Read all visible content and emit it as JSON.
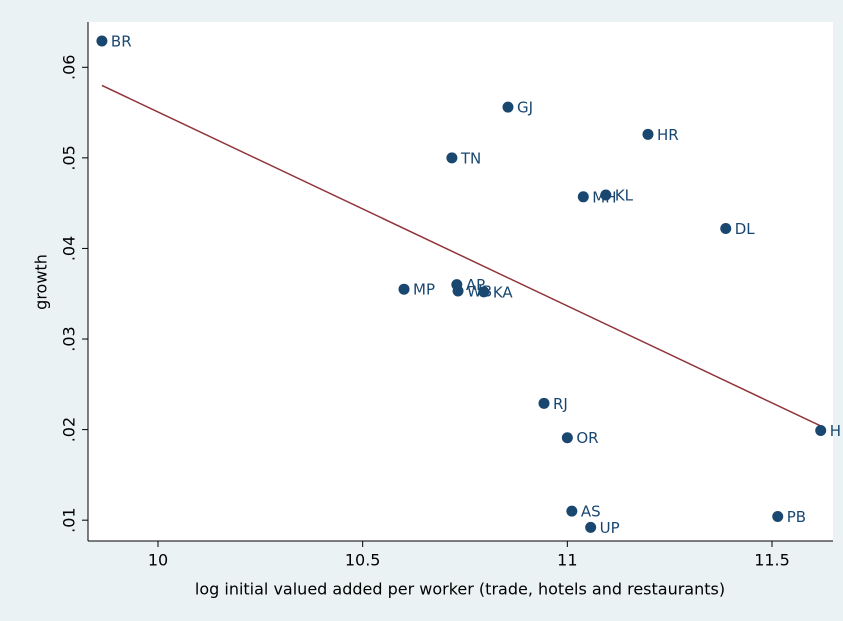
{
  "chart_data": {
    "type": "scatter",
    "x_label": "log initial valued added per worker (trade, hotels and restaurants)",
    "y_label": "growth",
    "points": {
      "color": "#1a476f",
      "labels": [
        "BR",
        "GJ",
        "HR",
        "TN",
        "MH",
        "KL",
        "DL",
        "AP",
        "WB",
        "KA",
        "MP",
        "RJ",
        "OR",
        "H",
        "AS",
        "UP",
        "PB"
      ],
      "x": [
        9.863,
        10.855,
        11.197,
        10.718,
        11.039,
        11.094,
        11.387,
        10.73,
        10.733,
        10.796,
        10.601,
        10.943,
        11.0,
        11.619,
        11.011,
        11.057,
        11.514
      ],
      "y": [
        0.0629,
        0.0556,
        0.0526,
        0.05,
        0.0457,
        0.0459,
        0.0422,
        0.036,
        0.0353,
        0.0352,
        0.0355,
        0.0229,
        0.0191,
        0.0199,
        0.011,
        0.0092,
        0.0104
      ]
    },
    "fit": {
      "color": "#90353b",
      "x": [
        9.863,
        11.619
      ],
      "y": [
        0.058,
        0.0204
      ]
    },
    "xlim": [
      9.829,
      11.649
    ],
    "xticks": [
      10,
      10.5,
      11,
      11.5
    ],
    "ylim": [
      0.0077,
      0.065
    ],
    "yticks": [
      {
        "value": 0.01,
        "label": ".01"
      },
      {
        "value": 0.02,
        "label": ".02"
      },
      {
        "value": 0.03,
        "label": ".03"
      },
      {
        "value": 0.04,
        "label": ".04"
      },
      {
        "value": 0.05,
        "label": ".05"
      },
      {
        "value": 0.06,
        "label": ".06"
      }
    ]
  }
}
